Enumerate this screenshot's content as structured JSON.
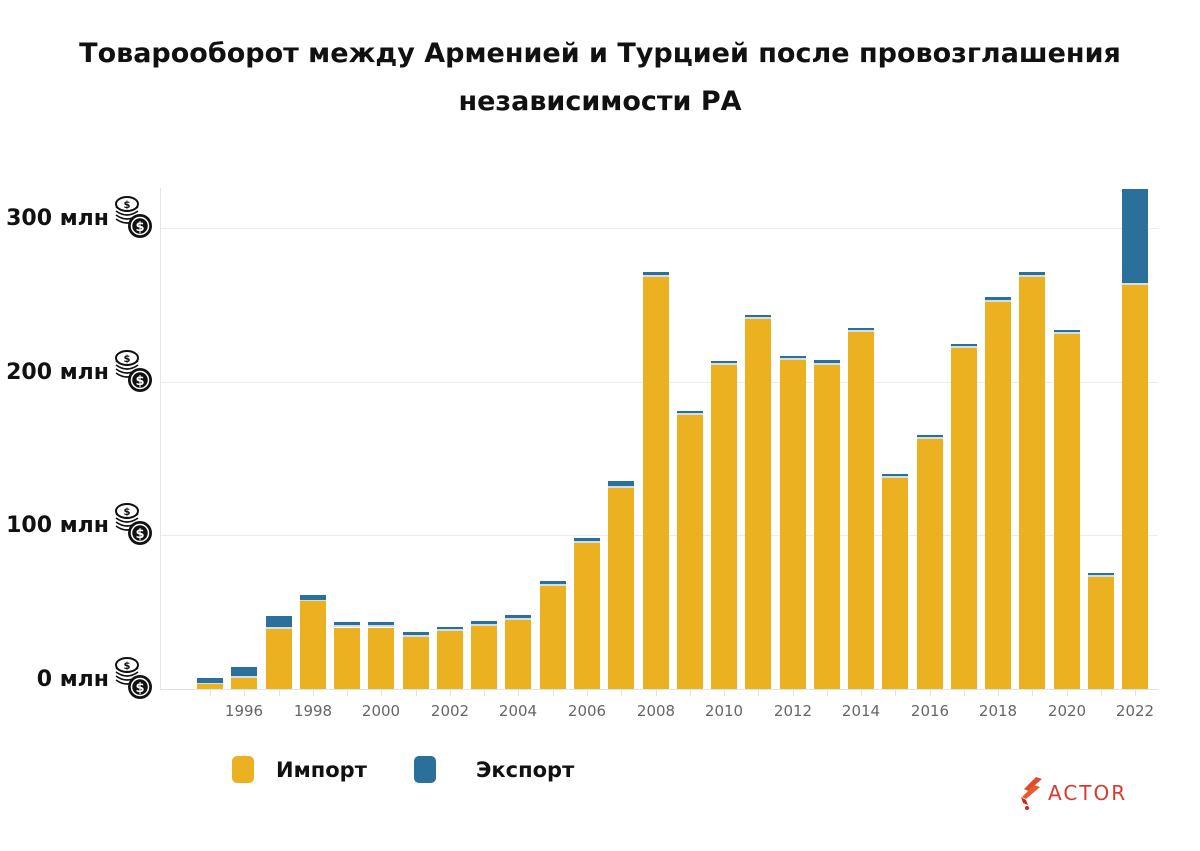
{
  "title": {
    "line1": "Товарооборот между Арменией и Турцией после провозглашения",
    "line2": "независимости РА"
  },
  "y_axis": {
    "ticks": [
      {
        "value": 0,
        "label": "0 млн"
      },
      {
        "value": 100,
        "label": "100 млн"
      },
      {
        "value": 200,
        "label": "200 млн"
      },
      {
        "value": 300,
        "label": "300 млн"
      }
    ],
    "icon": "coins-dollar-icon"
  },
  "x_axis": {
    "tick_labels": [
      "1996",
      "1998",
      "2000",
      "2002",
      "2004",
      "2006",
      "2008",
      "2010",
      "2012",
      "2014",
      "2016",
      "2018",
      "2020",
      "2022"
    ]
  },
  "legend": {
    "items": [
      {
        "label": "Импорт",
        "color": "#ebb120"
      },
      {
        "label": "Экспорт",
        "color": "#2b6f9b"
      }
    ]
  },
  "logo": {
    "text": "ACTOR",
    "color": "#d93a2b"
  },
  "colors": {
    "import": "#ebb120",
    "export": "#2b6f9b"
  },
  "chart_data": {
    "type": "bar",
    "stacked": true,
    "title": "Товарооборот между Арменией и Турцией после провозглашения независимости РА",
    "xlabel": "",
    "ylabel": "",
    "unit": "млн USD",
    "ylim": [
      0,
      325
    ],
    "grid": true,
    "legend_position": "bottom-left",
    "categories": [
      "1995",
      "1996",
      "1997",
      "1998",
      "1999",
      "2000",
      "2001",
      "2002",
      "2003",
      "2004",
      "2005",
      "2006",
      "2007",
      "2008",
      "2009",
      "2010",
      "2011",
      "2012",
      "2013",
      "2014",
      "2015",
      "2016",
      "2017",
      "2018",
      "2019",
      "2020",
      "2021",
      "2022"
    ],
    "series": [
      {
        "name": "Импорт",
        "color": "#ebb120",
        "values": [
          3,
          7,
          39,
          57,
          40,
          40,
          34,
          38,
          41,
          45,
          67,
          95,
          131,
          268,
          178,
          211,
          241,
          214,
          211,
          232,
          137,
          163,
          222,
          252,
          268,
          231,
          73,
          263
        ]
      },
      {
        "name": "Экспорт",
        "color": "#2b6f9b",
        "values": [
          3,
          6,
          7,
          3,
          2,
          2,
          2,
          1,
          2,
          2,
          2,
          2,
          3,
          2,
          1,
          1,
          1,
          1,
          2,
          1,
          1,
          1,
          1,
          2,
          2,
          1,
          0.5,
          61
        ]
      }
    ]
  }
}
